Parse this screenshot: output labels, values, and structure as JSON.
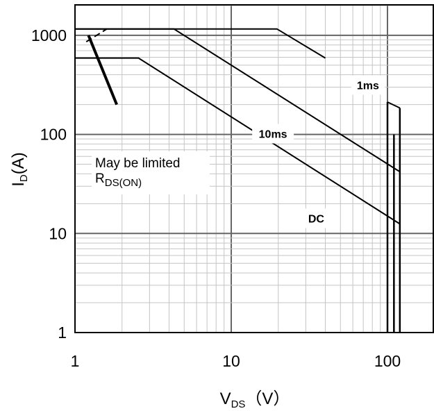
{
  "chart_data": {
    "type": "line",
    "title": "",
    "xlabel": "VDS（V）",
    "xlabel_main": "V",
    "xlabel_sub": "DS",
    "xlabel_unit": "（V）",
    "ylabel": "ID(A)",
    "ylabel_main": "I",
    "ylabel_sub": "D",
    "ylabel_unit": "(A)",
    "xscale": "log",
    "yscale": "log",
    "xlim": [
      1,
      200
    ],
    "ylim": [
      1,
      2000
    ],
    "grid": true,
    "x_tick_labels": [
      "1",
      "10",
      "100"
    ],
    "y_tick_labels": [
      "1",
      "10",
      "100",
      "1000"
    ],
    "x_ticks": [
      1,
      10,
      100
    ],
    "y_ticks": [
      1,
      10,
      100,
      1000
    ],
    "series": [
      {
        "x": [
          1.18,
          1.6
        ],
        "y": [
          860,
          1160
        ],
        "style": "dashed"
      },
      {
        "x": [
          1.0,
          4.3,
          120
        ],
        "y": [
          1160,
          1160,
          42
        ],
        "style": "solid"
      },
      {
        "x": [
          1.0,
          19.6,
          40
        ],
        "y": [
          1160,
          1160,
          590
        ],
        "style": "solid"
      },
      {
        "x": [
          100,
          120
        ],
        "y": [
          212,
          185
        ],
        "style": "solid"
      },
      {
        "x": [
          1.0,
          2.55,
          120
        ],
        "y": [
          590,
          590,
          12.5
        ],
        "style": "solid"
      },
      {
        "x": [
          1.22,
          1.85
        ],
        "y": [
          1000,
          200
        ],
        "style": "bold"
      }
    ],
    "boundaries": [
      {
        "x": [
          100,
          100
        ],
        "y": [
          1,
          212
        ]
      },
      {
        "x": [
          110,
          110
        ],
        "y": [
          1,
          100
        ]
      },
      {
        "x": [
          120,
          120
        ],
        "y": [
          1,
          185
        ]
      }
    ],
    "annotations": [
      {
        "text": "1ms",
        "x": 75,
        "y": 310
      },
      {
        "text": "10ms",
        "x": 18.5,
        "y": 100
      },
      {
        "text": "DC",
        "x": 35,
        "y": 14
      }
    ],
    "note": {
      "line1": "May be limited",
      "main": "R",
      "sub": "DS(ON)",
      "x": 1.15,
      "y": 28
    }
  }
}
